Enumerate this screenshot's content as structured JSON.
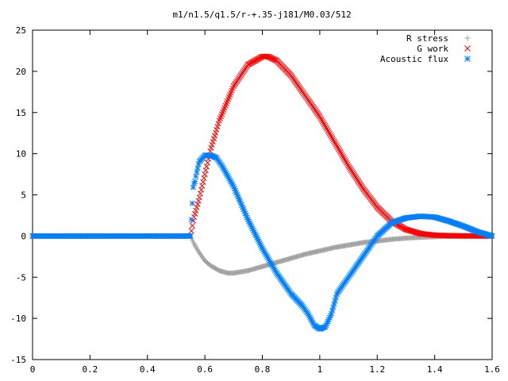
{
  "chart_data": {
    "type": "scatter",
    "title": "m1/n1.5/q1.5/r-+.35-j181/M0.03/512",
    "xlabel": "",
    "ylabel": "",
    "xlim": [
      0,
      1.6
    ],
    "ylim": [
      -15,
      25
    ],
    "x_ticks": [
      "0",
      "0.2",
      "0.4",
      "0.6",
      "0.8",
      "1",
      "1.2",
      "1.4",
      "1.6"
    ],
    "y_ticks": [
      "25",
      "20",
      "15",
      "10",
      "5",
      "0",
      "-5",
      "-10",
      "-15"
    ],
    "grid": false,
    "legend_position": "top-right",
    "series": [
      {
        "name": "R stress",
        "marker": "plus",
        "color": "#a0a0a0",
        "x": [
          0,
          0.55,
          0.56,
          0.58,
          0.6,
          0.62,
          0.65,
          0.68,
          0.7,
          0.75,
          0.8,
          0.85,
          0.9,
          0.95,
          1.0,
          1.05,
          1.1,
          1.15,
          1.2,
          1.25,
          1.3,
          1.35,
          1.4,
          1.45,
          1.5,
          1.55,
          1.6
        ],
        "y": [
          0,
          0,
          -0.8,
          -2.0,
          -3.0,
          -3.6,
          -4.2,
          -4.5,
          -4.5,
          -4.2,
          -3.7,
          -3.2,
          -2.7,
          -2.2,
          -1.8,
          -1.4,
          -1.1,
          -0.8,
          -0.6,
          -0.4,
          -0.25,
          -0.15,
          -0.08,
          -0.04,
          -0.02,
          -0.01,
          0
        ]
      },
      {
        "name": "G work",
        "marker": "cross",
        "color": "#ff0000",
        "x": [
          0,
          0.55,
          0.56,
          0.58,
          0.6,
          0.62,
          0.65,
          0.7,
          0.75,
          0.8,
          0.82,
          0.85,
          0.9,
          0.95,
          1.0,
          1.05,
          1.1,
          1.15,
          1.2,
          1.25,
          1.3,
          1.35,
          1.4,
          1.45,
          1.5,
          1.55,
          1.6
        ],
        "y": [
          0,
          0,
          2.0,
          4.5,
          7.5,
          10.5,
          14.0,
          18.2,
          20.8,
          21.8,
          21.8,
          21.3,
          19.5,
          17.0,
          14.5,
          11.5,
          8.5,
          5.8,
          3.5,
          1.8,
          0.8,
          0.3,
          0.1,
          0.05,
          0.02,
          0.01,
          0
        ]
      },
      {
        "name": "Acoustic flux",
        "marker": "star",
        "color": "#0080ff",
        "x": [
          0,
          0.55,
          0.555,
          0.56,
          0.565,
          0.57,
          0.58,
          0.6,
          0.62,
          0.64,
          0.66,
          0.7,
          0.75,
          0.8,
          0.85,
          0.9,
          0.94,
          0.96,
          0.98,
          1.0,
          1.02,
          1.04,
          1.06,
          1.1,
          1.15,
          1.2,
          1.25,
          1.3,
          1.35,
          1.4,
          1.45,
          1.5,
          1.55,
          1.6
        ],
        "y": [
          0,
          0,
          3.2,
          6.3,
          6.5,
          7.5,
          9.0,
          9.8,
          9.8,
          9.5,
          8.5,
          6.0,
          2.0,
          -1.5,
          -4.5,
          -7.0,
          -8.5,
          -9.5,
          -10.8,
          -11.3,
          -11.0,
          -9.5,
          -7.0,
          -5.0,
          -2.5,
          0,
          1.6,
          2.2,
          2.4,
          2.3,
          1.8,
          1.2,
          0.5,
          0
        ]
      }
    ]
  }
}
